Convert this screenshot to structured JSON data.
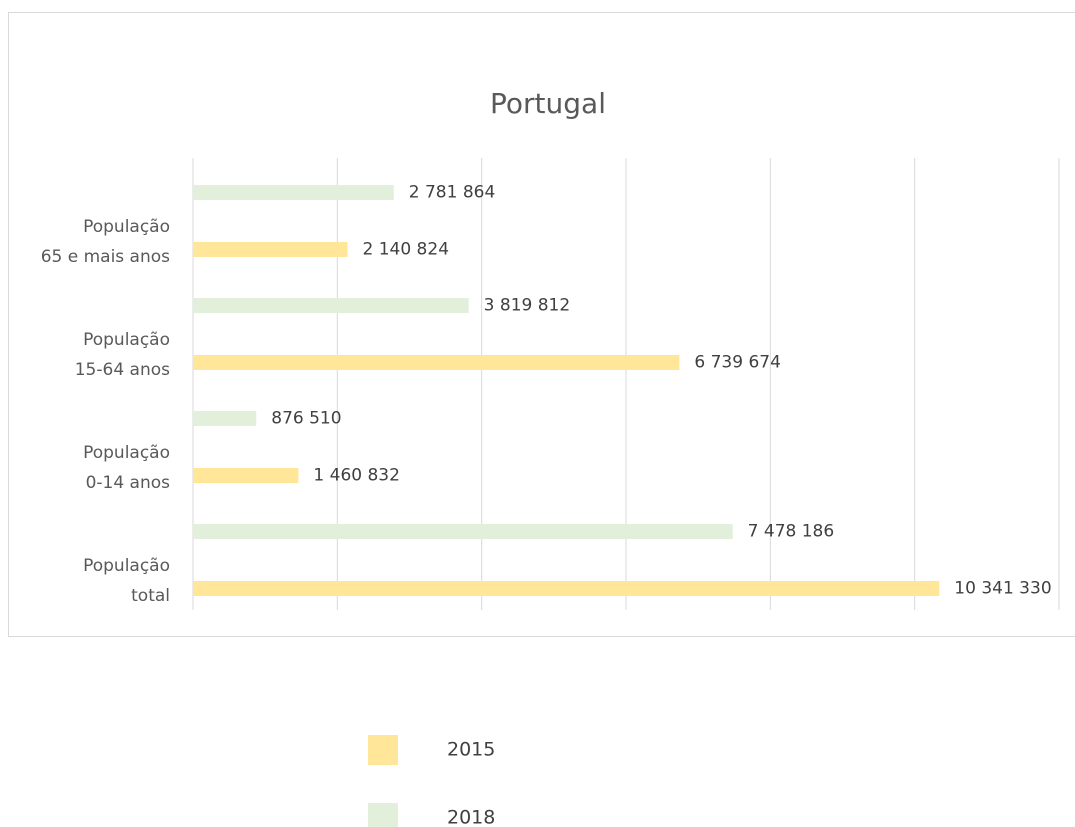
{
  "chart_data": {
    "type": "bar",
    "orientation": "horizontal",
    "title": "Portugal",
    "categories": [
      "População\ntotal",
      "População\n0-14 anos",
      "População\n15-64 anos",
      "População\n65 e mais anos"
    ],
    "series": [
      {
        "name": "2015",
        "color": "#ffe699",
        "values": [
          10341330,
          1460832,
          6739674,
          2140824
        ],
        "value_labels": [
          "10 341 330",
          "1 460 832",
          "6 739 674",
          "2 140 824"
        ]
      },
      {
        "name": "2018",
        "color": "#e2efda",
        "values": [
          7478186,
          876510,
          3819812,
          2781864
        ],
        "value_labels": [
          "7 478 186",
          "876 510",
          "3 819 812",
          "2 781 864"
        ]
      }
    ],
    "xlim": [
      0,
      12000000
    ],
    "xticks": [
      0,
      2000000,
      4000000,
      6000000,
      8000000,
      10000000,
      12000000
    ],
    "grid": true,
    "legend": "bottom"
  }
}
